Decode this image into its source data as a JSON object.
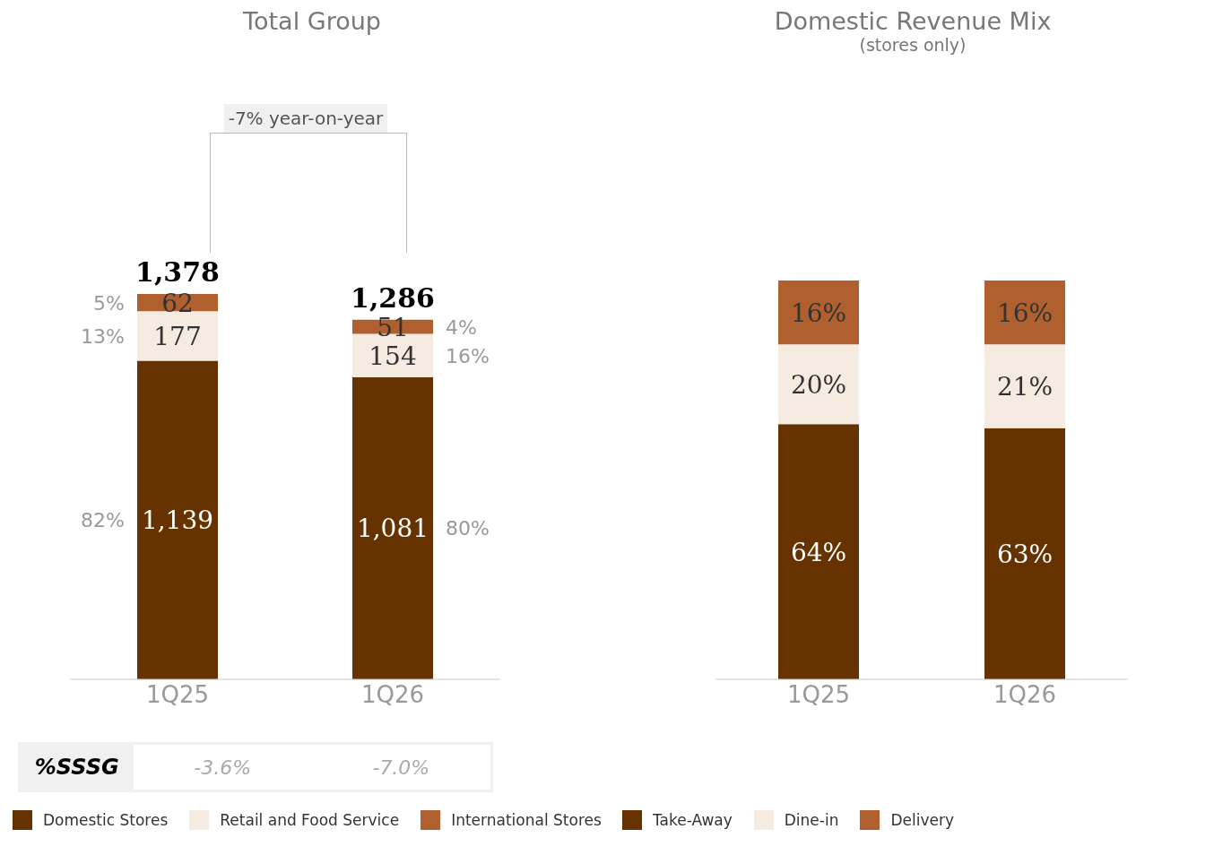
{
  "chart_data": [
    {
      "type": "bar",
      "title": "Total Group",
      "categories": [
        "1Q25",
        "1Q26"
      ],
      "stacked": true,
      "legend": "bottom",
      "series": [
        {
          "name": "Domestic Stores",
          "color": "#663300",
          "values": [
            1139,
            1081
          ],
          "value_labels": [
            "1,139",
            "1,081"
          ]
        },
        {
          "name": "Retail and Food Service",
          "color": "#f5ebe0",
          "values": [
            177,
            154
          ],
          "value_labels": [
            "177",
            "154"
          ]
        },
        {
          "name": "International Stores",
          "color": "#b0602e",
          "values": [
            62,
            51
          ],
          "value_labels": [
            "62",
            "51"
          ]
        }
      ],
      "totals": [
        "1,378",
        "1,286"
      ],
      "annotations": [
        "82%",
        "13%",
        "5%",
        "80%",
        "16%",
        "4%",
        "-7% year-on-year",
        "%SSSG",
        "-3.6%",
        "-7.0%"
      ]
    },
    {
      "type": "bar",
      "title": "Domestic Revenue Mix",
      "subtitle": "(stores only)",
      "categories": [
        "1Q25",
        "1Q26"
      ],
      "stacked": true,
      "legend": "bottom",
      "series": [
        {
          "name": "Take-Away",
          "color": "#663300",
          "values": [
            64,
            63
          ],
          "value_labels": [
            "64%",
            "63%"
          ]
        },
        {
          "name": "Dine-in",
          "color": "#f5ebe0",
          "values": [
            20,
            21
          ],
          "value_labels": [
            "20%",
            "21%"
          ]
        },
        {
          "name": "Delivery",
          "color": "#b0602e",
          "values": [
            16,
            16
          ],
          "value_labels": [
            "16%",
            "16%"
          ]
        }
      ]
    }
  ]
}
